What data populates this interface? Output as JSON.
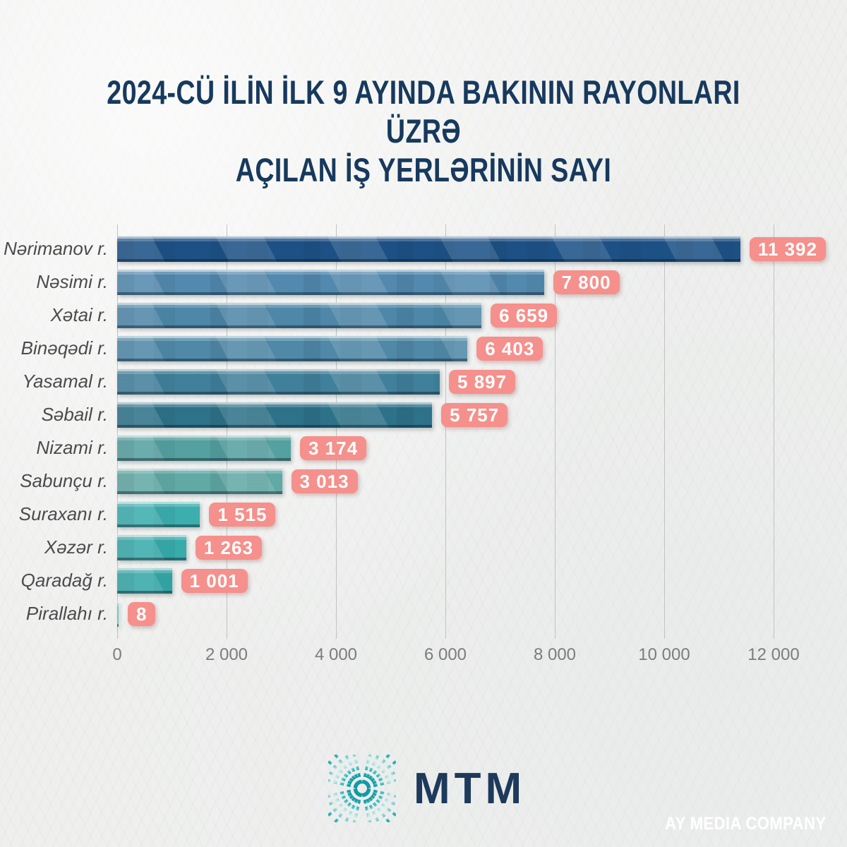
{
  "title": {
    "line1": "2024-CÜ İLİN İLK 9 AYINDA BAKININ RAYONLARI ÜZRƏ",
    "line2": "AÇILAN İŞ YERLƏRİNİN SAYI"
  },
  "chart_data": {
    "type": "bar",
    "orientation": "horizontal",
    "title": "2024-CÜ İLİN İLK 9 AYINDA BAKININ RAYONLARI ÜZRƏ AÇILAN İŞ YERLƏRİNİN SAYI",
    "categories": [
      "Nərimanov r.",
      "Nəsimi r.",
      "Xətai r.",
      "Binəqədi r.",
      "Yasamal r.",
      "Səbail r.",
      "Nizami r.",
      "Sabunçu r.",
      "Suraxanı r.",
      "Xəzər r.",
      "Qaradağ r.",
      "Pirallahı r."
    ],
    "values": [
      11392,
      7800,
      6659,
      6403,
      5897,
      5757,
      3174,
      3013,
      1515,
      1263,
      1001,
      8
    ],
    "values_display": [
      "11 392",
      "7 800",
      "6 659",
      "6 403",
      "5 897",
      "5 757",
      "3 174",
      "3 013",
      "1 515",
      "1 263",
      "1 001",
      "8"
    ],
    "xlim": [
      0,
      12000
    ],
    "xticks": [
      0,
      2000,
      4000,
      6000,
      8000,
      10000,
      12000
    ],
    "xtick_labels": [
      "0",
      "2 000",
      "4 000",
      "6 000",
      "8 000",
      "10 000",
      "12 000"
    ],
    "grid": true,
    "legend": false,
    "bar_colors": [
      "#1d5186",
      "#5389ae",
      "#4e87a8",
      "#5089a8",
      "#41809b",
      "#2e7289",
      "#55a0a0",
      "#61a9a4",
      "#3caeae",
      "#38abab",
      "#35a8a8",
      "#6ccaca"
    ],
    "badge_color": "#f5908c"
  },
  "footer": {
    "logo_text": "MTM",
    "watermark": "AY MEDIA COMPANY"
  },
  "colors": {
    "title": "#17395d",
    "category_label": "#4b4b4b",
    "tick_label": "#7c7c7c",
    "gridline": "#c2c3c1",
    "badge": "#f5908c",
    "badge_text": "#ffffff",
    "logo_teal": "#2fb5b8",
    "logo_navy": "#1d3a5a",
    "background": "#eff0ee"
  }
}
